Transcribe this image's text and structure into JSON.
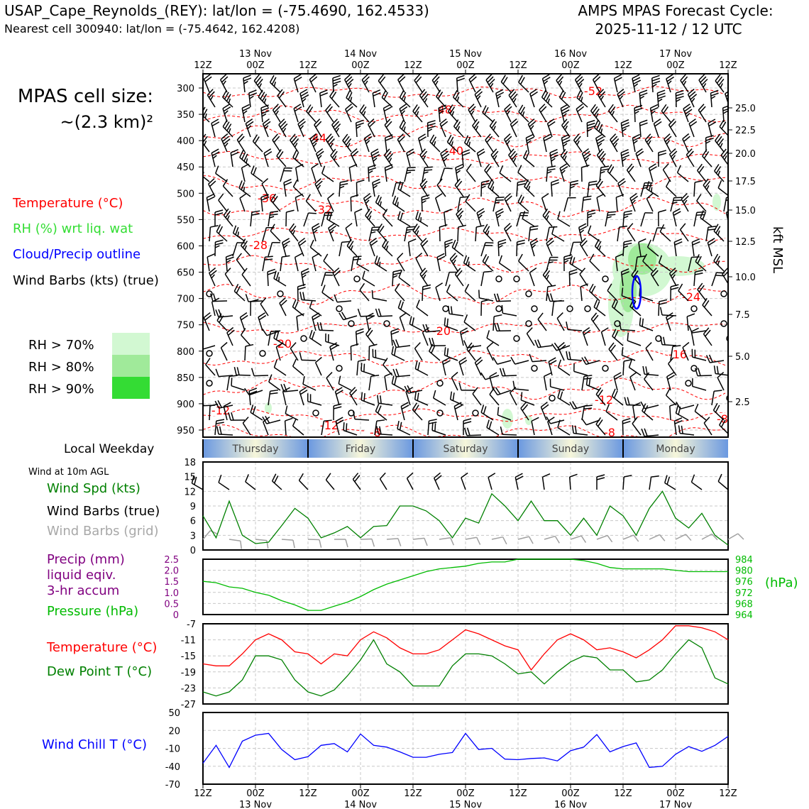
{
  "header": {
    "station_title": "USAP_Cape_Reynolds_(REY): lat/lon = (-75.4690, 162.4533)",
    "nearest_cell": "Nearest cell 300940: lat/lon = (-75.4642, 162.4208)",
    "forecast_title_1": "AMPS MPAS Forecast Cycle:",
    "forecast_title_2": "2025-11-12 / 12 UTC"
  },
  "left_panel": {
    "cell_size_1": "MPAS cell size:",
    "cell_size_2": "~(2.3 km)²",
    "legend_temperature": "Temperature (°C)",
    "legend_rh": "RH (%) wrt liq. wat",
    "legend_cloud": "Cloud/Precip outline",
    "legend_barbs": "Wind Barbs (kts) (true)",
    "rh_70": "RH > 70%",
    "rh_80": "RH > 80%",
    "rh_90": "RH > 90%",
    "local_weekday": "Local Weekday",
    "wind_10m": "Wind at 10m AGL",
    "wind_spd": "Wind Spd (kts)",
    "wind_barbs_true": "Wind Barbs (true)",
    "wind_barbs_grid": "Wind Barbs (grid)",
    "precip_1": "Precip (mm)",
    "precip_2": "liquid eqiv.",
    "precip_3": "3-hr accum",
    "pressure": "Pressure (hPa)",
    "temp_label": "Temperature (°C)",
    "dew_label": "Dew Point T (°C)",
    "windchill_label": "Wind Chill T (°C)",
    "kft_label": "kft MSL",
    "hpa_label": "(hPa)"
  },
  "colors": {
    "temperature": "#ff0000",
    "rh": "#22cc22",
    "cloud": "#0000ff",
    "barbs": "#000000",
    "barbs_grid": "#a0a0a0",
    "precip": "#800080",
    "pressure": "#00bb00",
    "dewpoint": "#008000",
    "windchill": "#0000ff",
    "rh70": "#d2f8d2",
    "rh80": "#a0ea9a",
    "rh90": "#34dc34"
  },
  "time_axis": {
    "ticks": [
      "12Z",
      "00Z",
      "12Z",
      "00Z",
      "12Z",
      "00Z",
      "12Z",
      "00Z",
      "12Z",
      "00Z",
      "12Z"
    ],
    "dates": [
      "13 Nov",
      "14 Nov",
      "15 Nov",
      "16 Nov",
      "17 Nov"
    ],
    "weekdays": [
      "Thursday",
      "Friday",
      "Saturday",
      "Sunday",
      "Monday"
    ]
  },
  "chart_data": [
    {
      "type": "contour",
      "name": "cross-section",
      "y_ticks_hpa": [
        "300",
        "350",
        "400",
        "450",
        "500",
        "550",
        "600",
        "650",
        "700",
        "750",
        "800",
        "850",
        "900",
        "950"
      ],
      "right_ticks_kft": [
        "25.0",
        "22.5",
        "20.0",
        "17.5",
        "15.0",
        "12.5",
        "10.0",
        "7.5",
        "5.0",
        "2.5"
      ],
      "temperature_contour_labels": [
        "-52",
        "-48",
        "-44",
        "-40",
        "-36",
        "-32",
        "-28",
        "-24",
        "-20",
        "-20",
        "-16",
        "-12",
        "-12",
        "-12",
        "-8",
        "-8",
        "-8"
      ]
    },
    {
      "type": "line",
      "name": "wind-speed",
      "x_hours": [
        0,
        3,
        6,
        9,
        12,
        15,
        18,
        21,
        24,
        27,
        30,
        33,
        36,
        39,
        42,
        45,
        48,
        51,
        54,
        57,
        60,
        63,
        66,
        69,
        72,
        75,
        78,
        81,
        84,
        87,
        90,
        93,
        96,
        99,
        102,
        105,
        108,
        111,
        114,
        117,
        120
      ],
      "values": [
        7,
        2.5,
        10,
        3,
        1.3,
        1.6,
        5,
        8.5,
        6.5,
        2.5,
        3.5,
        4.8,
        2.5,
        4.8,
        5,
        9,
        9,
        8,
        6,
        2.5,
        6.5,
        5.5,
        11.5,
        9,
        6,
        10,
        6,
        6,
        3,
        6.5,
        3,
        9,
        7,
        3,
        8.5,
        12,
        6.5,
        4.5,
        7.5,
        3,
        1
      ],
      "y_ticks": [
        "18",
        "15",
        "12",
        "9",
        "6",
        "3",
        "0"
      ],
      "ylim": [
        0,
        18
      ]
    },
    {
      "type": "line",
      "name": "pressure",
      "x_hours": [
        0,
        3,
        6,
        9,
        12,
        15,
        18,
        21,
        24,
        27,
        30,
        33,
        36,
        39,
        42,
        45,
        48,
        51,
        54,
        57,
        60,
        63,
        66,
        69,
        72,
        75,
        78,
        81,
        84,
        87,
        90,
        93,
        96,
        99,
        102,
        105,
        108,
        111,
        114,
        117,
        120
      ],
      "values": [
        976,
        975.5,
        974,
        973.5,
        972,
        971,
        969,
        967.5,
        965.5,
        965.5,
        967,
        968.5,
        970.5,
        973,
        975,
        976.5,
        978,
        979.5,
        980.5,
        981,
        981.5,
        982.5,
        983,
        983,
        984,
        984,
        984,
        984,
        984,
        983.5,
        982.5,
        981,
        980.5,
        980.5,
        980.5,
        980.5,
        980,
        979.5,
        979.5,
        979.5,
        979.5
      ],
      "left_ticks_precip": [
        "2.5",
        "2.0",
        "1.5",
        "1.0",
        "0.5",
        "0"
      ],
      "right_ticks_pressure": [
        "984",
        "980",
        "976",
        "972",
        "968",
        "964"
      ],
      "ylim": [
        964,
        984
      ]
    },
    {
      "type": "line",
      "name": "temperature-dewpoint",
      "x_hours": [
        0,
        3,
        6,
        9,
        12,
        15,
        18,
        21,
        24,
        27,
        30,
        33,
        36,
        39,
        42,
        45,
        48,
        51,
        54,
        57,
        60,
        63,
        66,
        69,
        72,
        75,
        78,
        81,
        84,
        87,
        90,
        93,
        96,
        99,
        102,
        105,
        108,
        111,
        114,
        117,
        120
      ],
      "series": [
        {
          "name": "Temperature (°C)",
          "values": [
            -17,
            -17.5,
            -17.5,
            -14.5,
            -11,
            -9.5,
            -11,
            -14,
            -14.5,
            -17,
            -14.5,
            -15,
            -11,
            -9,
            -10.5,
            -13,
            -14.5,
            -14.5,
            -13.5,
            -11,
            -8.5,
            -9.5,
            -11,
            -12.5,
            -13.5,
            -18.5,
            -14.5,
            -11,
            -9.5,
            -11,
            -13.5,
            -13,
            -14,
            -15.5,
            -13.5,
            -11,
            -7.5,
            -7.5,
            -8,
            -9,
            -11
          ]
        },
        {
          "name": "Dew Point T (°C)",
          "values": [
            -24,
            -25,
            -24,
            -21,
            -15,
            -15,
            -16,
            -21,
            -24,
            -25,
            -23.5,
            -20,
            -16,
            -11,
            -17,
            -19,
            -22.5,
            -22.5,
            -22.5,
            -17.5,
            -14.5,
            -14.5,
            -15,
            -17,
            -19.5,
            -19,
            -22,
            -19,
            -16.5,
            -15,
            -15.5,
            -18.5,
            -18.5,
            -21.5,
            -21,
            -18.5,
            -14.5,
            -11,
            -13,
            -20.5,
            -22
          ]
        }
      ],
      "y_ticks": [
        "-7",
        "-11",
        "-15",
        "-19",
        "-23",
        "-27"
      ],
      "ylim": [
        -27,
        -7
      ]
    },
    {
      "type": "line",
      "name": "wind-chill",
      "x_hours": [
        0,
        3,
        6,
        9,
        12,
        15,
        18,
        21,
        24,
        27,
        30,
        33,
        36,
        39,
        42,
        45,
        48,
        51,
        54,
        57,
        60,
        63,
        66,
        69,
        72,
        75,
        78,
        81,
        84,
        87,
        90,
        93,
        96,
        99,
        102,
        105,
        108,
        111,
        114,
        117,
        120
      ],
      "values": [
        -35,
        -5,
        -42,
        2,
        12,
        15,
        -12,
        -29,
        -24,
        -5,
        -2,
        -16,
        14,
        -5,
        -8,
        -16,
        -25,
        -25,
        -20,
        -17,
        15,
        -12,
        -10,
        -28,
        -29,
        -27,
        -26,
        -31,
        -14,
        -8,
        13,
        -16,
        -7,
        -1,
        -42,
        -40,
        -20,
        -7,
        -15,
        -5,
        10
      ],
      "y_ticks": [
        "50",
        "20",
        "-10",
        "-40",
        "-70"
      ],
      "ylim": [
        -70,
        50
      ]
    }
  ]
}
